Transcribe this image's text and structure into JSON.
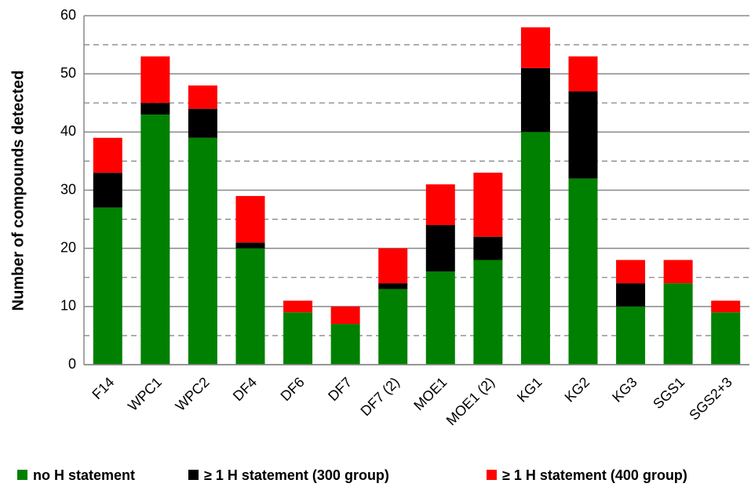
{
  "chart_data": {
    "type": "stacked_bar",
    "y_label": "Number of compounds  detected",
    "categories": [
      "F14",
      "WPC1",
      "WPC2",
      "DF4",
      "DF6",
      "DF7",
      "DF7 (2)",
      "MOE1",
      "MOE1 (2)",
      "KG1",
      "KG2",
      "KG3",
      "SGS1",
      "SGS2+3"
    ],
    "series": [
      {
        "name": "no H statement",
        "color": "#008000",
        "values": [
          27,
          43,
          39,
          20,
          9,
          7,
          13,
          16,
          18,
          40,
          32,
          10,
          14,
          9
        ]
      },
      {
        "name": "≥ 1 H statement (300 group)",
        "color": "#000000",
        "values": [
          6,
          2,
          5,
          1,
          0,
          0,
          1,
          8,
          4,
          11,
          15,
          4,
          0,
          0
        ]
      },
      {
        "name": "≥ 1 H statement (400 group)",
        "color": "#ff0000",
        "values": [
          6,
          8,
          4,
          8,
          2,
          3,
          6,
          7,
          11,
          7,
          6,
          4,
          4,
          2
        ]
      }
    ],
    "ylim": [
      0,
      60
    ],
    "yticks": [
      0,
      10,
      20,
      30,
      40,
      50,
      60
    ],
    "yminor_ticks": [
      5,
      15,
      25,
      35,
      45,
      55
    ],
    "grid": true,
    "legend": "bottom"
  }
}
